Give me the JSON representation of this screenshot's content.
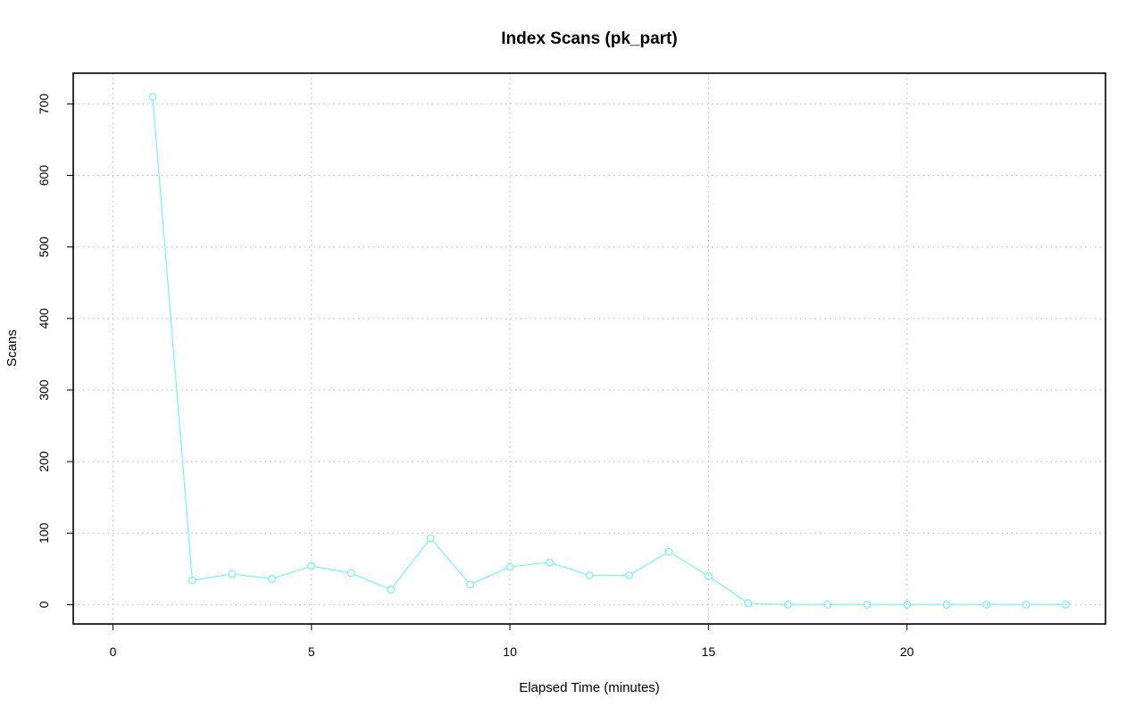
{
  "chart_data": {
    "type": "line",
    "title": "Index Scans (pk_part)",
    "xlabel": "Elapsed Time (minutes)",
    "ylabel": "Scans",
    "xlim": [
      -1,
      25
    ],
    "ylim": [
      -27,
      743
    ],
    "x_ticks": [
      0,
      5,
      10,
      15,
      20
    ],
    "y_ticks": [
      0,
      100,
      200,
      300,
      400,
      500,
      600,
      700
    ],
    "grid": true,
    "series": [
      {
        "color": "#7ff6f6",
        "x": [
          1,
          2,
          3,
          4,
          5,
          6,
          7,
          8,
          9,
          10,
          11,
          12,
          13,
          14,
          15,
          16,
          17,
          18,
          19,
          20,
          21,
          22,
          23,
          24
        ],
        "values": [
          710,
          34,
          43,
          36,
          54,
          44,
          21,
          93,
          28,
          53,
          59,
          41,
          41,
          74,
          40,
          2,
          0,
          0,
          0,
          0,
          0,
          0,
          0,
          0
        ]
      }
    ]
  }
}
